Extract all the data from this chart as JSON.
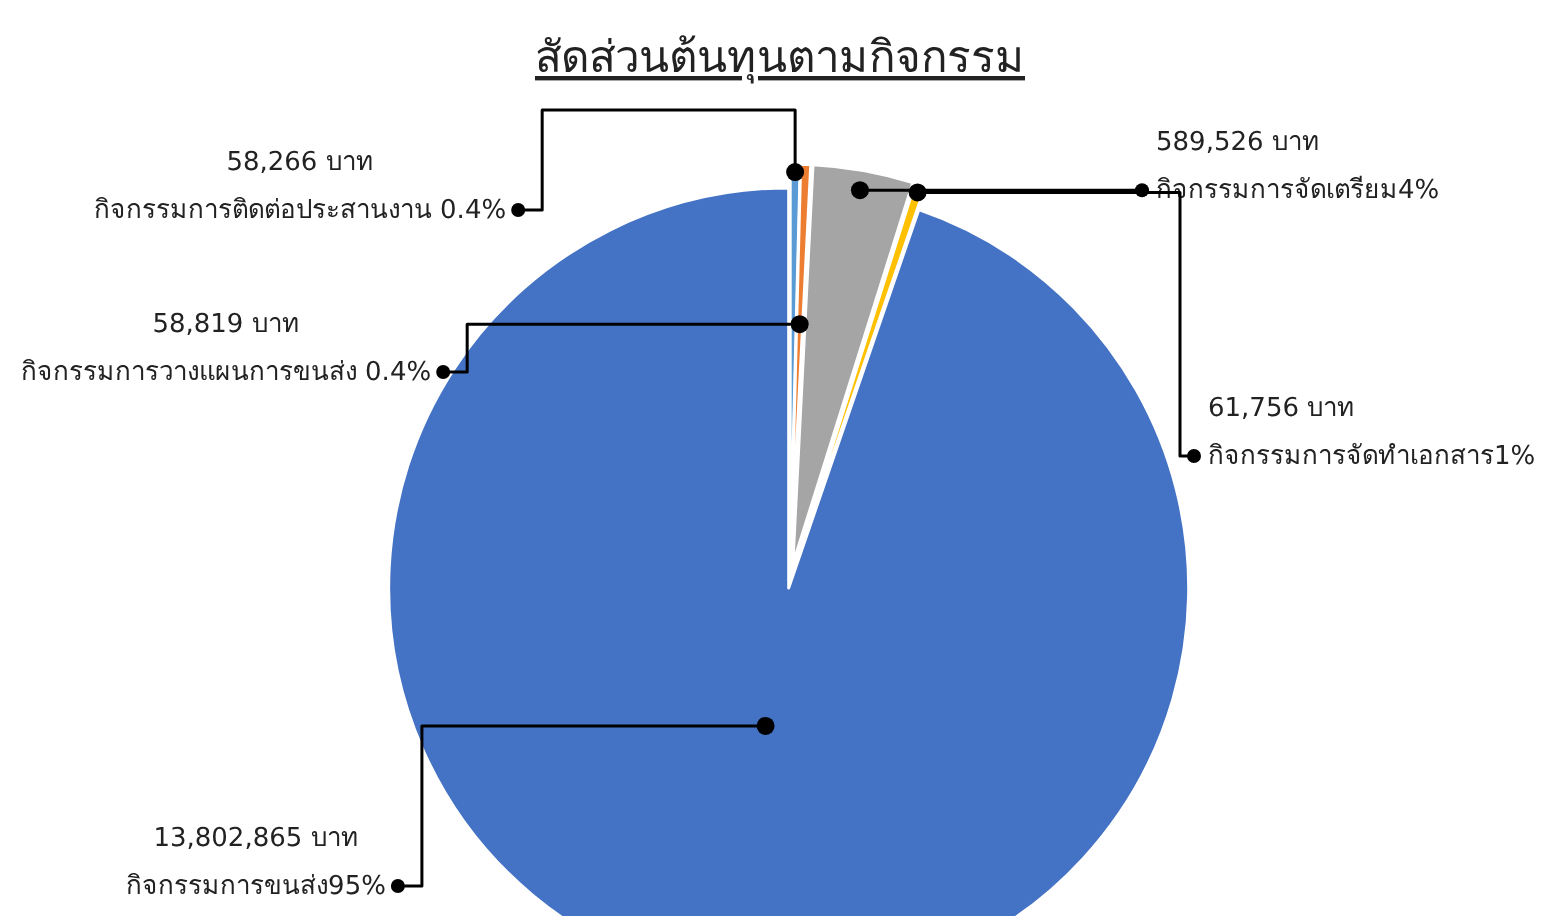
{
  "chart_data": {
    "type": "pie",
    "title": "สัดส่วนต้นทุนตามกิจกรรม",
    "categories": [
      "กิจกรรมการติดต่อประสานงาน 0.4%",
      "กิจกรรมการวางแผนการขนส่ง 0.4%",
      "กิจกรรมการจัดเตรียม4%",
      "กิจกรรมการจัดทำเอกสาร1%",
      "กิจกรรมการขนส่ง95%"
    ],
    "values": [
      58266,
      58819,
      589526,
      61756,
      13802865
    ],
    "colors": [
      "#5b9bd5",
      "#ed7d31",
      "#a5a5a5",
      "#ffc000",
      "#4472c4"
    ],
    "value_labels": [
      "58,266 บาท",
      "58,819 บาท",
      "589,526 บาท",
      "61,756 บาท",
      "13,802,865 บาท"
    ],
    "legend": false
  }
}
